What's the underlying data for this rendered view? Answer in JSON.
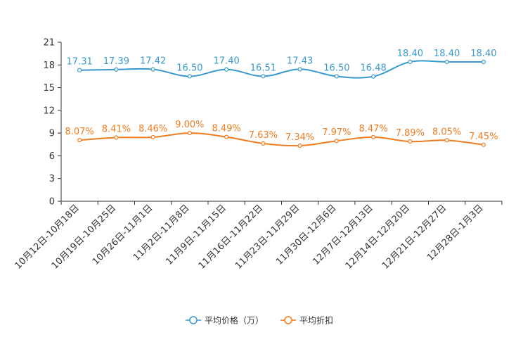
{
  "chart_data": {
    "type": "line",
    "title": "",
    "xlabel": "",
    "ylabel": "",
    "ylim": [
      0,
      21
    ],
    "yticks": [
      0,
      3,
      6,
      9,
      12,
      15,
      18,
      21
    ],
    "grid": false,
    "legend_position": "bottom",
    "categories": [
      "10月12日-10月18日",
      "10月19日-10月25日",
      "10月26日-11月1日",
      "11月2日-11月8日",
      "11月9日-11月15日",
      "11月16日-11月22日",
      "11月23日-11月29日",
      "11月30日-12月6日",
      "12月7日-12月13日",
      "12月14日-12月20日",
      "12月21日-12月27日",
      "12月28日-1月3日"
    ],
    "series": [
      {
        "name": "平均价格（万）",
        "color": "#3a9acb",
        "values": [
          17.31,
          17.39,
          17.42,
          16.5,
          17.4,
          16.51,
          17.43,
          16.5,
          16.48,
          18.4,
          18.4,
          18.4
        ],
        "labels": [
          "17.31",
          "17.39",
          "17.42",
          "16.50",
          "17.40",
          "16.51",
          "17.43",
          "16.50",
          "16.48",
          "18.40",
          "18.40",
          "18.40"
        ]
      },
      {
        "name": "平均折扣",
        "color": "#f07c1e",
        "values": [
          8.07,
          8.41,
          8.46,
          9.0,
          8.49,
          7.63,
          7.34,
          7.97,
          8.47,
          7.89,
          8.05,
          7.45
        ],
        "labels": [
          "8.07%",
          "8.41%",
          "8.46%",
          "9.00%",
          "8.49%",
          "7.63%",
          "7.34%",
          "7.97%",
          "8.47%",
          "7.89%",
          "8.05%",
          "7.45%"
        ]
      }
    ]
  }
}
